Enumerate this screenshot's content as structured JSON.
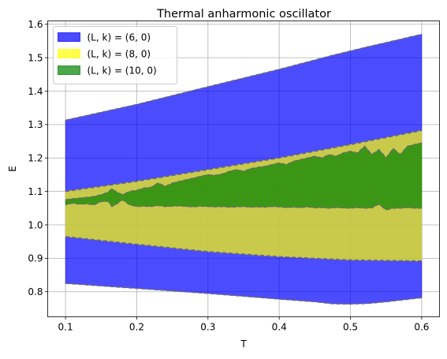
{
  "chart_data": {
    "type": "area",
    "title": "Thermal anharmonic oscillator",
    "xlabel": "T",
    "ylabel": "E",
    "xlim": [
      0.075,
      0.625
    ],
    "ylim": [
      0.725,
      1.61
    ],
    "xticks": [
      0.1,
      0.2,
      0.3,
      0.4,
      0.5,
      0.6
    ],
    "xtick_labels": [
      "0.1",
      "0.2",
      "0.3",
      "0.4",
      "0.5",
      "0.6"
    ],
    "yticks": [
      0.8,
      0.9,
      1.0,
      1.1,
      1.2,
      1.3,
      1.4,
      1.5,
      1.6
    ],
    "ytick_labels": [
      "0.8",
      "0.9",
      "1.0",
      "1.1",
      "1.2",
      "1.3",
      "1.4",
      "1.5",
      "1.6"
    ],
    "grid": true,
    "legend_position": "top-left",
    "series": [
      {
        "name": "(L, k) = (6, 0)",
        "color": "#0000ff",
        "alpha": 0.7,
        "x": [
          0.1,
          0.2,
          0.3,
          0.4,
          0.45,
          0.475,
          0.5,
          0.525,
          0.55,
          0.6
        ],
        "upper": [
          1.313,
          1.36,
          1.413,
          1.465,
          1.493,
          1.507,
          1.52,
          1.533,
          1.545,
          1.57
        ],
        "lower": [
          0.825,
          0.81,
          0.795,
          0.778,
          0.77,
          0.764,
          0.763,
          0.765,
          0.77,
          0.782
        ]
      },
      {
        "name": "(L, k) = (8, 0)",
        "color": "#ffff00",
        "alpha": 0.7,
        "x": [
          0.1,
          0.2,
          0.3,
          0.4,
          0.5,
          0.6
        ],
        "upper": [
          1.1,
          1.13,
          1.165,
          1.2,
          1.24,
          1.282
        ],
        "lower": [
          0.965,
          0.942,
          0.92,
          0.905,
          0.895,
          0.892
        ]
      },
      {
        "name": "(L, k) = (10, 0)",
        "color": "#008000",
        "alpha": 0.7,
        "x": [
          0.1,
          0.11,
          0.12,
          0.13,
          0.14,
          0.15,
          0.16,
          0.165,
          0.17,
          0.18,
          0.19,
          0.2,
          0.21,
          0.22,
          0.23,
          0.24,
          0.25,
          0.26,
          0.27,
          0.28,
          0.29,
          0.3,
          0.31,
          0.32,
          0.33,
          0.34,
          0.35,
          0.36,
          0.37,
          0.38,
          0.39,
          0.4,
          0.41,
          0.42,
          0.43,
          0.44,
          0.45,
          0.46,
          0.47,
          0.48,
          0.49,
          0.5,
          0.51,
          0.52,
          0.53,
          0.54,
          0.55,
          0.56,
          0.57,
          0.58,
          0.59,
          0.6
        ],
        "upper": [
          1.075,
          1.078,
          1.08,
          1.082,
          1.085,
          1.09,
          1.098,
          1.108,
          1.1,
          1.09,
          1.1,
          1.103,
          1.11,
          1.112,
          1.125,
          1.115,
          1.125,
          1.13,
          1.135,
          1.14,
          1.145,
          1.15,
          1.148,
          1.152,
          1.16,
          1.165,
          1.16,
          1.168,
          1.172,
          1.175,
          1.18,
          1.185,
          1.18,
          1.19,
          1.195,
          1.2,
          1.205,
          1.2,
          1.21,
          1.205,
          1.215,
          1.22,
          1.215,
          1.235,
          1.21,
          1.225,
          1.2,
          1.228,
          1.21,
          1.235,
          1.24,
          1.245
        ],
        "lower": [
          1.06,
          1.065,
          1.062,
          1.063,
          1.06,
          1.07,
          1.07,
          1.055,
          1.06,
          1.075,
          1.06,
          1.055,
          1.056,
          1.055,
          1.058,
          1.055,
          1.056,
          1.057,
          1.055,
          1.054,
          1.056,
          1.055,
          1.054,
          1.055,
          1.053,
          1.054,
          1.055,
          1.053,
          1.054,
          1.053,
          1.055,
          1.054,
          1.052,
          1.053,
          1.052,
          1.054,
          1.051,
          1.052,
          1.05,
          1.052,
          1.051,
          1.05,
          1.052,
          1.05,
          1.051,
          1.062,
          1.045,
          1.05,
          1.05,
          1.052,
          1.05,
          1.05
        ]
      }
    ]
  }
}
